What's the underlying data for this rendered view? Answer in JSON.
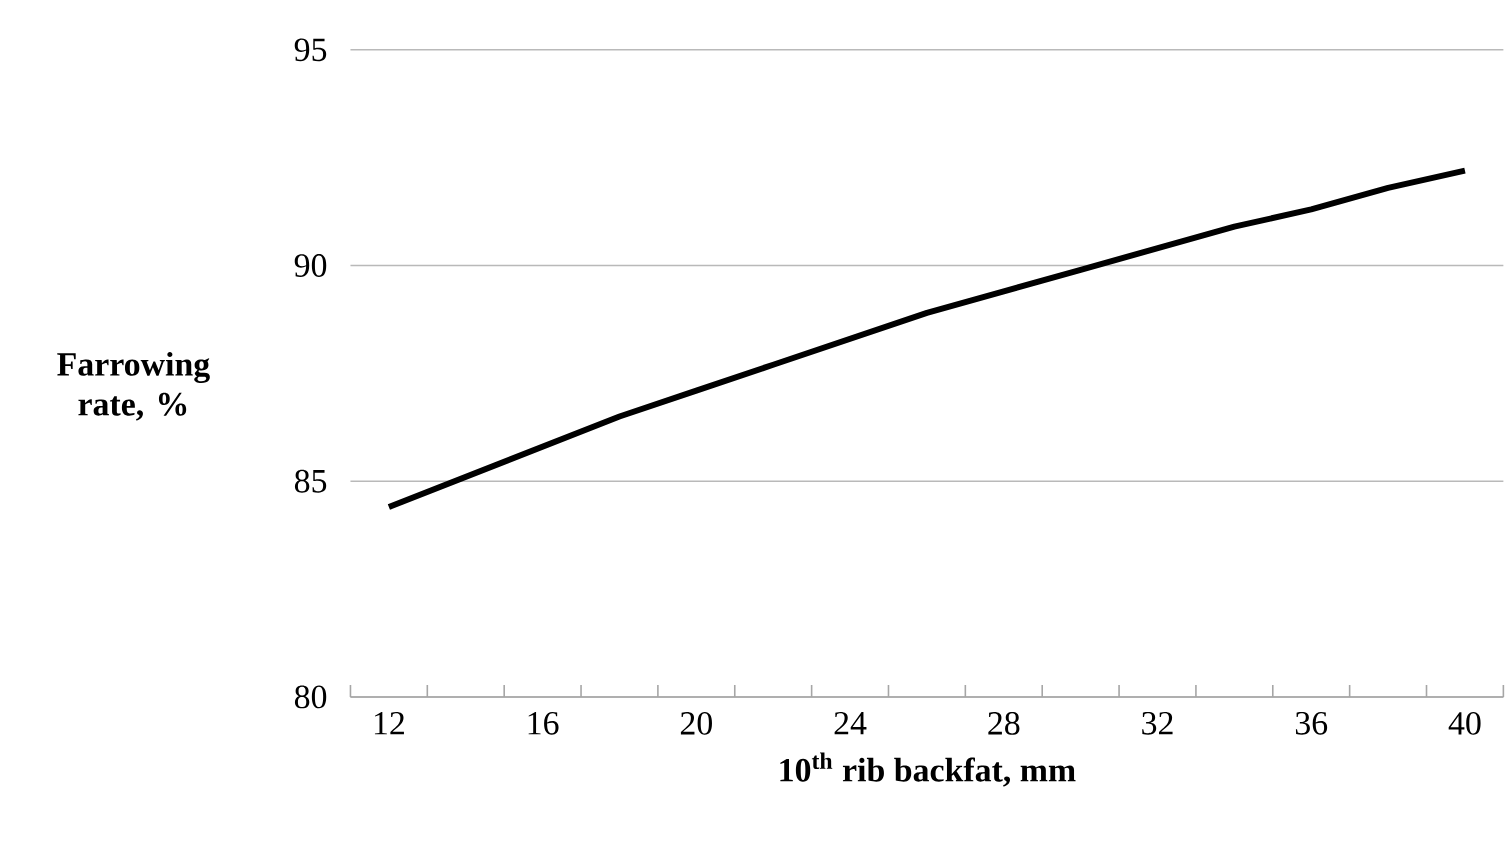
{
  "chart_data": {
    "type": "line",
    "xlabel": "10$^{th}$ rib backfat, mm",
    "ylabel": "Farrowing rate, %",
    "x": [
      12,
      14,
      16,
      18,
      20,
      22,
      24,
      26,
      28,
      30,
      32,
      34,
      36,
      38,
      40
    ],
    "series": [
      {
        "color": "#000000",
        "values": [
          84.4,
          85.1,
          85.8,
          86.5,
          87.1,
          87.7,
          88.3,
          88.9,
          89.4,
          89.9,
          90.4,
          90.9,
          91.3,
          91.8,
          92.2
        ]
      }
    ],
    "xlim": [
      11,
      41
    ],
    "xticks": [
      12,
      16,
      20,
      24,
      28,
      32,
      36,
      40,
      {
        "value": 11,
        "label": null
      },
      {
        "value": 13,
        "label": null
      },
      {
        "value": 15,
        "label": null
      },
      {
        "value": 17,
        "label": null
      },
      {
        "value": 19,
        "label": null
      },
      {
        "value": 21,
        "label": null
      },
      {
        "value": 23,
        "label": null
      },
      {
        "value": 25,
        "label": null
      },
      {
        "value": 27,
        "label": null
      },
      {
        "value": 29,
        "label": null
      },
      {
        "value": 31,
        "label": null
      },
      {
        "value": 33,
        "label": null
      },
      {
        "value": 35,
        "label": null
      },
      {
        "value": 37,
        "label": null
      },
      {
        "value": 39,
        "label": null
      },
      {
        "value": 41,
        "label": null
      }
    ],
    "ylim": [
      80,
      95
    ],
    "yticks": [
      80,
      85,
      90,
      95
    ],
    "grid": "y",
    "marker": "none",
    "line_style": "solid"
  }
}
